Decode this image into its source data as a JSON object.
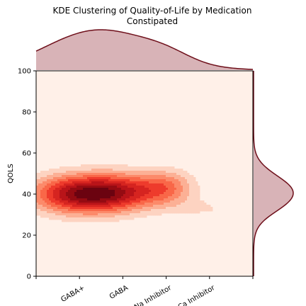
{
  "chart_data": {
    "type": "kde",
    "title": "KDE Clustering of Quality-of-Life by Medication",
    "subtitle": "Constipated",
    "xlabel": "",
    "ylabel": "QOLS",
    "categories": [
      "GABA+",
      "GABA",
      "Na Inhibitor",
      "Ca Inhibitor"
    ],
    "category_positions": [
      1,
      2,
      3,
      4
    ],
    "xlim": [
      0,
      5
    ],
    "ylim": [
      0,
      100
    ],
    "yticks": [
      0,
      20,
      40,
      60,
      80,
      100
    ],
    "colormap": "Reds",
    "fill_levels": 9,
    "density_components": [
      {
        "x": 1.0,
        "y": 40,
        "sx": 0.75,
        "sy": 6.5,
        "w": 1.0
      },
      {
        "x": 2.0,
        "y": 41,
        "sx": 0.6,
        "sy": 6.5,
        "w": 0.55
      },
      {
        "x": 3.0,
        "y": 43,
        "sx": 0.45,
        "sy": 6.0,
        "w": 0.45
      },
      {
        "x": 3.9,
        "y": 33,
        "sx": 0.55,
        "sy": 3.5,
        "w": 0.12
      }
    ],
    "marginal_x_peak_category": "GABA+",
    "marginal_y_peak": 40,
    "colors": {
      "background_level": "#fff0e8",
      "marginal_line": "#6e0f1a",
      "marginal_fill": "#d8b3b7"
    }
  }
}
